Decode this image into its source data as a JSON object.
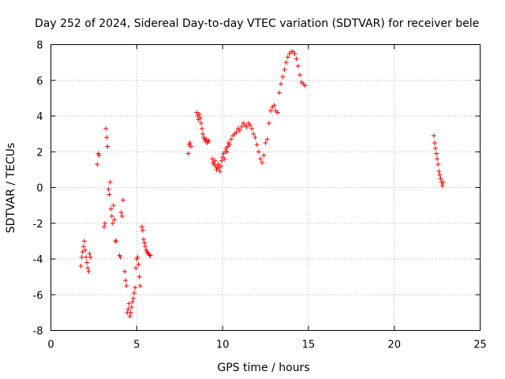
{
  "chart_data": {
    "type": "scatter",
    "title": "Day 252 of 2024, Sidereal Day-to-day VTEC variation (SDTVAR) for receiver bele",
    "xlabel": "GPS time / hours",
    "ylabel": "SDTVAR / TECUs",
    "xlim": [
      0,
      25
    ],
    "ylim": [
      -8,
      8
    ],
    "xticks": [
      0,
      5,
      10,
      15,
      20,
      25
    ],
    "yticks": [
      -8,
      -6,
      -4,
      -2,
      0,
      2,
      4,
      6,
      8
    ],
    "grid": true,
    "marker": "+",
    "color": "#ff0000",
    "series": [
      {
        "name": "SDTVAR",
        "x": [
          1.75,
          1.8,
          1.85,
          1.9,
          1.95,
          2.0,
          2.05,
          2.1,
          2.15,
          2.2,
          2.25,
          2.3,
          2.7,
          2.75,
          2.8,
          3.1,
          3.15,
          3.2,
          3.25,
          3.3,
          3.35,
          3.4,
          3.45,
          3.5,
          3.55,
          3.6,
          3.65,
          3.7,
          3.75,
          3.8,
          4.0,
          4.05,
          4.1,
          4.15,
          4.2,
          4.3,
          4.35,
          4.4,
          4.45,
          4.5,
          4.55,
          4.6,
          4.65,
          4.7,
          4.75,
          4.8,
          4.85,
          4.9,
          4.95,
          5.0,
          5.05,
          5.1,
          5.15,
          5.2,
          5.3,
          5.35,
          5.4,
          5.45,
          5.5,
          5.55,
          5.6,
          5.65,
          5.7,
          5.75,
          5.8,
          8.0,
          8.05,
          8.1,
          8.15,
          8.5,
          8.55,
          8.6,
          8.65,
          8.7,
          8.75,
          8.8,
          8.85,
          8.9,
          8.95,
          9.0,
          9.05,
          9.1,
          9.15,
          9.2,
          9.4,
          9.45,
          9.5,
          9.55,
          9.6,
          9.65,
          9.7,
          9.75,
          9.8,
          9.85,
          9.9,
          9.95,
          10.0,
          10.05,
          10.1,
          10.15,
          10.2,
          10.25,
          10.3,
          10.35,
          10.4,
          10.5,
          10.6,
          10.7,
          10.8,
          10.9,
          11.0,
          11.1,
          11.2,
          11.3,
          11.4,
          11.5,
          11.6,
          11.7,
          11.8,
          11.9,
          12.0,
          12.1,
          12.2,
          12.3,
          12.4,
          12.5,
          12.6,
          12.7,
          12.8,
          12.9,
          13.0,
          13.1,
          13.2,
          13.3,
          13.4,
          13.5,
          13.6,
          13.7,
          13.8,
          13.9,
          14.0,
          14.1,
          14.2,
          14.3,
          14.4,
          14.5,
          14.6,
          14.7,
          14.8,
          22.3,
          22.35,
          22.4,
          22.45,
          22.5,
          22.55,
          22.6,
          22.65,
          22.7,
          22.75,
          22.8,
          22.85
        ],
        "y": [
          -4.4,
          -3.9,
          -3.6,
          -3.3,
          -3.0,
          -3.5,
          -3.9,
          -4.2,
          -4.5,
          -4.7,
          -3.7,
          -3.9,
          1.3,
          1.9,
          1.8,
          -2.2,
          -2.0,
          3.3,
          2.8,
          2.3,
          -0.1,
          -0.4,
          0.3,
          -1.2,
          -1.6,
          -2.0,
          -1.0,
          -1.8,
          -3.0,
          -3.0,
          -3.8,
          -3.9,
          -1.4,
          -1.6,
          -0.7,
          -4.7,
          -5.2,
          -5.5,
          -7.0,
          -6.8,
          -6.5,
          -7.2,
          -7.0,
          -6.7,
          -6.4,
          -6.2,
          -5.9,
          -5.6,
          -4.5,
          -4.0,
          -3.9,
          -4.3,
          -5.0,
          -5.5,
          -2.2,
          -2.4,
          -2.9,
          -3.1,
          -3.3,
          -3.5,
          -3.6,
          -3.7,
          -3.7,
          -3.8,
          -3.8,
          1.9,
          2.4,
          2.5,
          2.3,
          4.2,
          4.0,
          3.8,
          4.1,
          3.9,
          3.6,
          3.3,
          3.0,
          2.8,
          2.7,
          2.6,
          2.7,
          2.5,
          2.6,
          2.6,
          1.6,
          1.4,
          1.3,
          1.5,
          1.2,
          1.0,
          1.1,
          1.3,
          1.1,
          0.9,
          1.2,
          1.5,
          1.7,
          1.9,
          1.6,
          2.0,
          2.2,
          2.0,
          2.3,
          2.5,
          2.4,
          2.7,
          2.9,
          3.0,
          3.1,
          3.3,
          3.2,
          3.4,
          3.6,
          3.5,
          3.4,
          3.6,
          3.5,
          3.3,
          3.0,
          2.8,
          2.4,
          2.0,
          1.6,
          1.4,
          1.8,
          2.5,
          2.7,
          3.6,
          4.3,
          4.5,
          4.6,
          4.3,
          4.2,
          5.3,
          5.8,
          6.2,
          6.6,
          7.0,
          7.3,
          7.5,
          7.6,
          7.6,
          7.5,
          7.2,
          6.8,
          6.3,
          5.9,
          5.8,
          5.7,
          2.9,
          2.5,
          2.2,
          1.9,
          1.6,
          1.3,
          0.9,
          0.7,
          0.5,
          0.3,
          0.1,
          0.3
        ]
      }
    ]
  }
}
